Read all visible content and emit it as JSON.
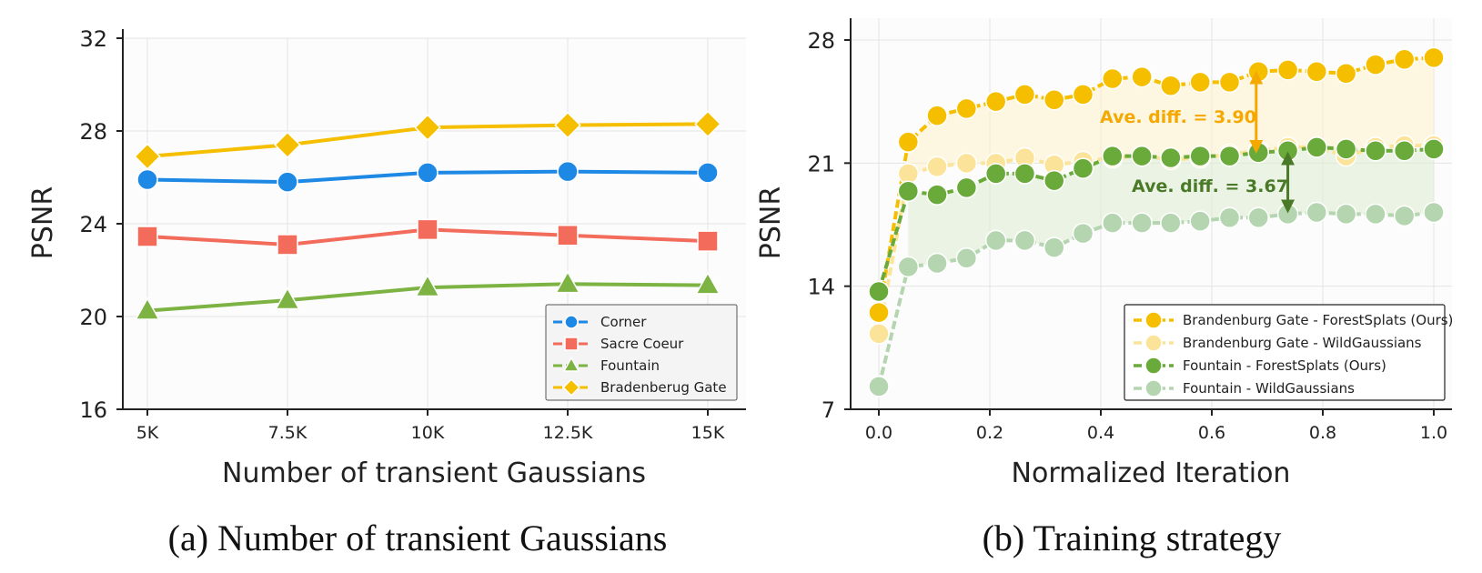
{
  "chart_data": [
    {
      "type": "line",
      "caption": "(a) Number of transient Gaussians",
      "xlabel": "Number of transient Gaussians",
      "ylabel": "PSNR",
      "categories": [
        "5K",
        "7.5K",
        "10K",
        "12.5K",
        "15K"
      ],
      "ylim": [
        16,
        32
      ],
      "yticks": [
        16,
        20,
        24,
        28,
        32
      ],
      "grid": true,
      "legend_position": "lower-right",
      "series": [
        {
          "name": "Corner",
          "color": "#1e88e5",
          "marker": "circle",
          "values": [
            25.9,
            25.8,
            26.2,
            26.25,
            26.2
          ]
        },
        {
          "name": "Sacre Coeur",
          "color": "#f26b5b",
          "marker": "square",
          "values": [
            23.45,
            23.1,
            23.75,
            23.5,
            23.25
          ]
        },
        {
          "name": "Fountain",
          "color": "#7cb342",
          "marker": "triangle",
          "values": [
            20.25,
            20.7,
            21.25,
            21.4,
            21.35
          ]
        },
        {
          "name": "Bradenberug Gate",
          "color": "#f5bf00",
          "marker": "diamond",
          "values": [
            26.9,
            27.4,
            28.15,
            28.25,
            28.3
          ]
        }
      ]
    },
    {
      "type": "line",
      "caption": "(b) Training strategy",
      "xlabel": "Normalized Iteration",
      "ylabel": "PSNR",
      "xlim": [
        -0.08,
        1.05
      ],
      "ylim": [
        7,
        29.5
      ],
      "xticks": [
        "0.0",
        "0.2",
        "0.4",
        "0.6",
        "0.8",
        "1.0"
      ],
      "yticks": [
        7,
        14,
        21,
        28
      ],
      "grid": true,
      "legend_position": "lower-right",
      "x": [
        0.0,
        0.053,
        0.105,
        0.158,
        0.211,
        0.263,
        0.316,
        0.368,
        0.421,
        0.474,
        0.526,
        0.579,
        0.632,
        0.684,
        0.737,
        0.789,
        0.842,
        0.895,
        0.947,
        1.0
      ],
      "series": [
        {
          "name": "Brandenburg Gate - ForestSplats (Ours)",
          "color": "#f5bf00",
          "values": [
            12.5,
            22.2,
            23.7,
            24.1,
            24.5,
            24.9,
            24.6,
            24.9,
            25.8,
            25.9,
            25.4,
            25.6,
            25.6,
            26.2,
            26.3,
            26.2,
            26.1,
            26.6,
            26.9,
            27.0
          ]
        },
        {
          "name": "Brandenburg Gate - WildGaussians",
          "color": "#fbe49a",
          "values": [
            11.3,
            20.4,
            20.8,
            21.0,
            21.0,
            21.3,
            20.9,
            21.1,
            21.3,
            21.4,
            21.2,
            21.3,
            21.5,
            21.7,
            21.9,
            21.9,
            21.4,
            21.9,
            22.0,
            22.0
          ]
        },
        {
          "name": "Fountain - ForestSplats (Ours)",
          "color": "#6aaa3a",
          "values": [
            13.7,
            19.4,
            19.2,
            19.6,
            20.4,
            20.4,
            20.0,
            20.7,
            21.4,
            21.4,
            21.3,
            21.4,
            21.4,
            21.6,
            21.7,
            21.9,
            21.8,
            21.7,
            21.7,
            21.8
          ]
        },
        {
          "name": "Fountain - WildGaussians",
          "color": "#b4d5b0",
          "values": [
            8.3,
            15.1,
            15.3,
            15.6,
            16.6,
            16.6,
            16.2,
            17.0,
            17.6,
            17.6,
            17.6,
            17.7,
            17.9,
            17.9,
            18.1,
            18.2,
            18.1,
            18.1,
            18.0,
            18.2
          ]
        }
      ],
      "annotations": [
        {
          "text": "Ave. diff. = 3.90",
          "color": "#f5a800",
          "x": 0.68,
          "y_top": 26.1,
          "y_bottom": 21.7
        },
        {
          "text": "Ave. diff. = 3.67",
          "color": "#4a7a28",
          "x": 0.737,
          "y_top": 21.5,
          "y_bottom": 18.3
        }
      ]
    }
  ]
}
